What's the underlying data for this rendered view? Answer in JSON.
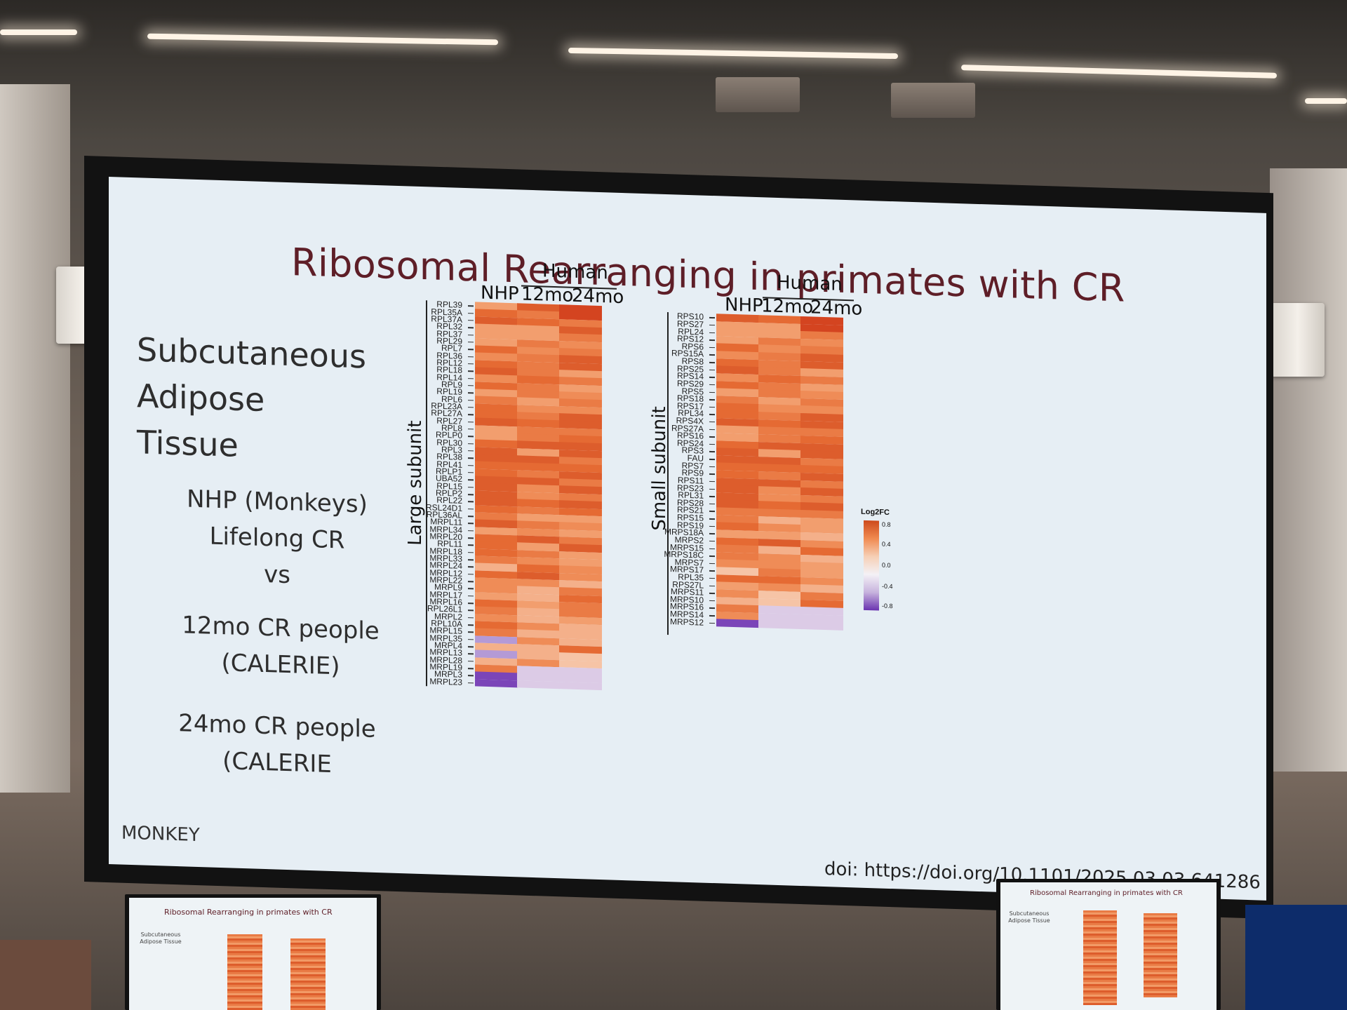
{
  "slide": {
    "title": "Ribosomal Rearranging in primates with CR",
    "left_heading_line1": "Subcutaneous",
    "left_heading_line2": "Adipose Tissue",
    "nhp_line1": "NHP (Monkeys)",
    "nhp_line2": "Lifelong CR",
    "vs": "vs",
    "p12_line1": "12mo CR people",
    "p12_line2": "(CALERIE)",
    "p24_line1": "24mo CR people",
    "p24_line2": "(CALERIE",
    "footer_left": "MONKEY",
    "doi": "doi: https://doi.org/10.1101/2025.03.03.641286"
  },
  "heatmap_large": {
    "axis_title": "Large subunit",
    "group_header": "Human",
    "columns": [
      "NHP",
      "12mo",
      "24mo"
    ],
    "rows": [
      "RPL39",
      "RPL35A",
      "RPL37A",
      "RPL32",
      "RPL37",
      "RPL29",
      "RPL7",
      "RPL36",
      "RPL12",
      "RPL18",
      "RPL14",
      "RPL9",
      "RPL19",
      "RPL6",
      "RPL23A",
      "RPL27A",
      "RPL27",
      "RPL8",
      "RPLP0",
      "RPL30",
      "RPL3",
      "RPL38",
      "RPL41",
      "RPLP1",
      "UBA52",
      "RPL15",
      "RPLP2",
      "RPL22",
      "RSL24D1",
      "RPL36AL",
      "MRPL11",
      "MRPL34",
      "MRPL20",
      "RPL11",
      "MRPL18",
      "MRPL33",
      "MRPL24",
      "MRPL12",
      "MRPL22",
      "MRPL9",
      "MRPL17",
      "MRPL16",
      "RPL26L1",
      "MRPL2",
      "RPL10A",
      "MRPL15",
      "MRPL35",
      "MRPL4",
      "MRPL13",
      "MRPL28",
      "MRPL19",
      "MRPL3",
      "MRPL23"
    ]
  },
  "heatmap_small": {
    "axis_title": "Small subunit",
    "group_header": "Human",
    "columns": [
      "NHP",
      "12mo",
      "24mo"
    ],
    "rows": [
      "RPS10",
      "RPS27",
      "RPL24",
      "RPS12",
      "RPS6",
      "RPS15A",
      "RPS8",
      "RPS25",
      "RPS14",
      "RPS29",
      "RPS5",
      "RPS18",
      "RPS17",
      "RPL34",
      "RPS4X",
      "RPS27A",
      "RPS16",
      "RPS24",
      "RPS3",
      "FAU",
      "RPS7",
      "RPS9",
      "RPS11",
      "RPS23",
      "RPL31",
      "RPS28",
      "RPS21",
      "RPS15",
      "RPS19",
      "MRPS18A",
      "MRPS2",
      "MRPS15",
      "MRPS18C",
      "MRPS7",
      "MRPS17",
      "RPL35",
      "RPS27L",
      "MRPS11",
      "MRPS10",
      "MRPS16",
      "MRPS14",
      "MRPS12"
    ]
  },
  "legend": {
    "title": "Log2FC",
    "ticks": [
      "0.8",
      "0.4",
      "0.0",
      "-0.4",
      "-0.8"
    ]
  },
  "colors": {
    "title": "#5e1e27",
    "slide_bg": "#e6eef4",
    "high": "#cd4a1c",
    "mid": "#f4f1f6",
    "low": "#6a33b0"
  },
  "monitors": {
    "left_title": "Ribosomal Rearranging in primates with CR",
    "right_title": "Ribosomal Rearranging in primates with CR"
  }
}
